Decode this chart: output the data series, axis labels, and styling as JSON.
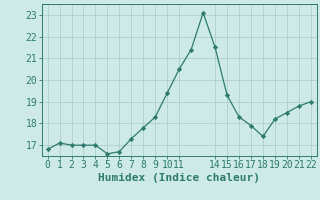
{
  "x": [
    0,
    1,
    2,
    3,
    4,
    5,
    6,
    7,
    8,
    9,
    10,
    11,
    12,
    13,
    14,
    15,
    16,
    17,
    18,
    19,
    20,
    21,
    22
  ],
  "y": [
    16.8,
    17.1,
    17.0,
    17.0,
    17.0,
    16.6,
    16.7,
    17.3,
    17.8,
    18.3,
    19.4,
    20.5,
    21.4,
    23.1,
    21.5,
    19.3,
    18.3,
    17.9,
    17.4,
    18.2,
    18.5,
    18.8,
    19.0
  ],
  "line_color": "#2d7b6e",
  "marker": "D",
  "marker_size": 2.2,
  "bg_color": "#ceeae7",
  "grid_color": "#b0ceca",
  "tick_color": "#2d7b6e",
  "label_color": "#2d7b6e",
  "xlabel": "Humidex (Indice chaleur)",
  "ylim": [
    16.5,
    23.5
  ],
  "yticks": [
    17,
    18,
    19,
    20,
    21,
    22,
    23
  ],
  "xticks": [
    0,
    1,
    2,
    3,
    4,
    5,
    6,
    7,
    8,
    9,
    10,
    11,
    14,
    15,
    16,
    17,
    18,
    19,
    20,
    21,
    22
  ],
  "xlim": [
    -0.5,
    22.5
  ],
  "font_size": 7,
  "xlabel_font_size": 8
}
